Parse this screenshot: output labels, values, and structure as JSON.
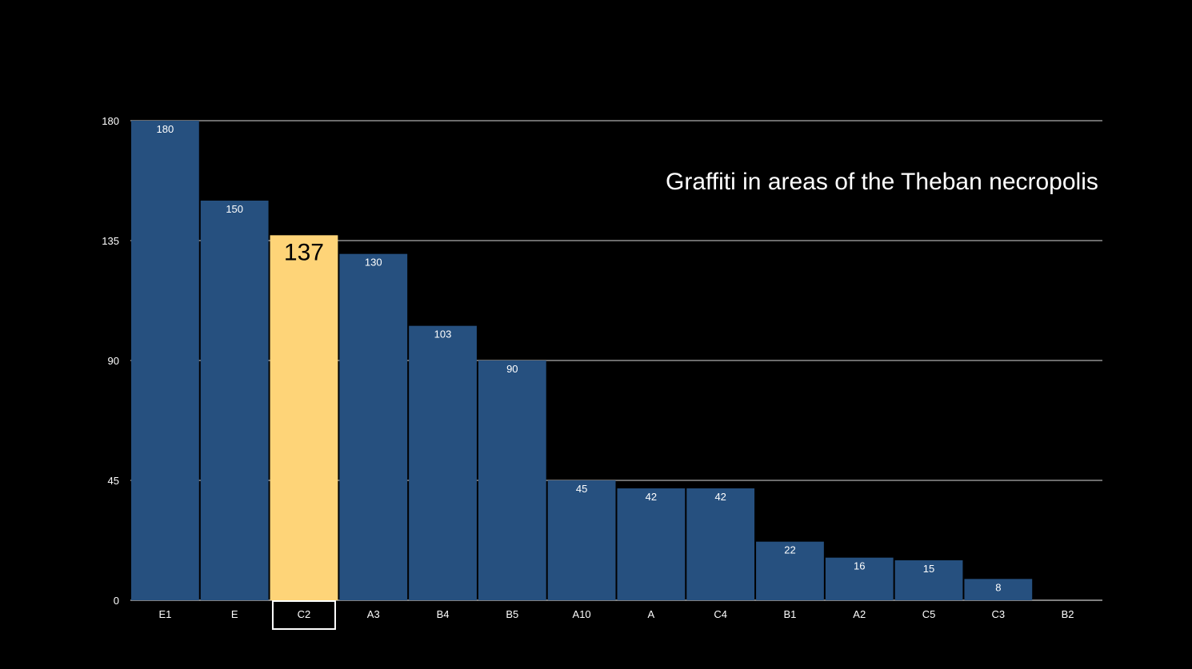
{
  "chart_data": {
    "type": "bar",
    "title": "Graffiti in areas of the Theban necropolis",
    "xlabel": "",
    "ylabel": "",
    "categories": [
      "E1",
      "E",
      "C2",
      "A3",
      "B4",
      "B5",
      "A10",
      "A",
      "C4",
      "B1",
      "A2",
      "C5",
      "C3",
      "B2"
    ],
    "values": [
      180,
      150,
      137,
      130,
      103,
      90,
      45,
      42,
      42,
      22,
      16,
      15,
      8,
      0
    ],
    "ylim": [
      0,
      180
    ],
    "yticks": [
      "0",
      "45",
      "90",
      "135",
      "180"
    ],
    "grid": true,
    "highlight_category": "C2",
    "colors": {
      "background": "#000000",
      "bar": "#26507f",
      "highlight_bar": "#fed478",
      "grid": "#ffffff",
      "text": "#ffffff"
    }
  }
}
